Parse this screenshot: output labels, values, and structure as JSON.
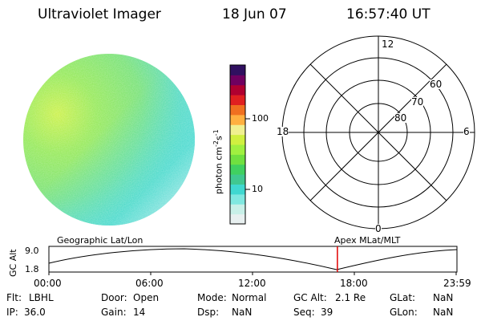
{
  "header": {
    "instrument": "Ultraviolet Imager",
    "date": "18 Jun 07",
    "time": "16:57:40 UT"
  },
  "colorbar": {
    "unit": "photon cm",
    "unit_exp1": "-2",
    "unit_s": "s",
    "unit_exp2": "-1",
    "tick_high": "100",
    "tick_low": "10",
    "colors": [
      "#e8f0f0",
      "#c8f0e8",
      "#80e8e0",
      "#40d8d0",
      "#40c890",
      "#40d060",
      "#70e040",
      "#a0f040",
      "#d0f040",
      "#f0f090",
      "#ffb040",
      "#f07020",
      "#e02020",
      "#b00030",
      "#700060",
      "#301060"
    ]
  },
  "polar_plot": {
    "mlt_top": "12",
    "mlt_bottom": "0",
    "mlt_left": "18",
    "mlt_right": "6",
    "lat_labels": [
      "60",
      "70",
      "80"
    ]
  },
  "timeline": {
    "left_label": "Geographic Lat/Lon",
    "right_label": "Apex MLat/MLT",
    "y_axis_label": "GC Alt",
    "y_ticks": [
      "9.0",
      "1.8"
    ],
    "time_ticks": [
      "00:00",
      "06:00",
      "12:00",
      "18:00",
      "23:59"
    ],
    "current_time_fraction": 0.707
  },
  "info": {
    "flt_label": "Flt:",
    "flt_value": "LBHL",
    "ip_label": "IP:",
    "ip_value": "36.0",
    "door_label": "Door:",
    "door_value": "Open",
    "gain_label": "Gain:",
    "gain_value": "14",
    "mode_label": "Mode:",
    "mode_value": "Normal",
    "dsp_label": "Dsp:",
    "dsp_value": "NaN",
    "gcalt_label": "GC Alt:",
    "gcalt_value": "2.1 Re",
    "seq_label": "Seq:",
    "seq_value": "39",
    "glat_label": "GLat:",
    "glat_value": "NaN",
    "glon_label": "GLon:",
    "glon_value": "NaN"
  }
}
